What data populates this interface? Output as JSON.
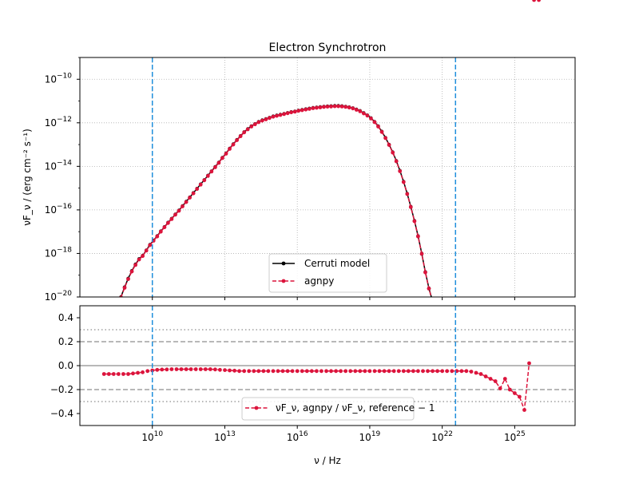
{
  "chart_data": [
    {
      "panel": "top",
      "type": "line",
      "title": "Electron Synchrotron",
      "xscale": "log",
      "yscale": "log",
      "xlim_log10": [
        7.0,
        27.5
      ],
      "ylim": [
        1e-20,
        1e-09
      ],
      "yticks": [
        {
          "value": 1e-10,
          "label": "10",
          "exp": "−10"
        },
        {
          "value": 1e-12,
          "label": "10",
          "exp": "−12"
        },
        {
          "value": 1e-14,
          "label": "10",
          "exp": "−14"
        },
        {
          "value": 1e-16,
          "label": "10",
          "exp": "−16"
        },
        {
          "value": 1e-18,
          "label": "10",
          "exp": "−18"
        },
        {
          "value": 1e-20,
          "label": "10",
          "exp": "−20"
        }
      ],
      "ylabel": "νF_ν / (erg cm⁻² s⁻¹)",
      "grid": true,
      "legend_position": "lower-center",
      "vlines_log10": [
        10.0,
        22.55
      ],
      "vline_color": "#1f8fdc",
      "series": [
        {
          "name": "Cerruti model",
          "color": "#000000",
          "style": "solid",
          "log10_x": [
            8.7,
            8.85,
            9.0,
            9.15,
            9.3,
            9.45,
            9.6,
            9.75,
            9.9,
            10.05,
            10.2,
            10.35,
            10.5,
            10.65,
            10.8,
            10.95,
            11.1,
            11.25,
            11.4,
            11.55,
            11.7,
            11.85,
            12.0,
            12.15,
            12.3,
            12.45,
            12.6,
            12.75,
            12.9,
            13.05,
            13.2,
            13.35,
            13.5,
            13.65,
            13.8,
            13.95,
            14.1,
            14.25,
            14.4,
            14.55,
            14.7,
            14.85,
            15.0,
            15.15,
            15.3,
            15.45,
            15.6,
            15.75,
            15.9,
            16.05,
            16.2,
            16.35,
            16.5,
            16.65,
            16.8,
            16.95,
            17.1,
            17.25,
            17.4,
            17.55,
            17.7,
            17.85,
            18.0,
            18.15,
            18.3,
            18.45,
            18.6,
            18.75,
            18.9,
            19.05,
            19.2,
            19.35,
            19.5,
            19.65,
            19.8,
            19.95,
            20.1,
            20.25,
            20.4,
            20.55,
            20.7,
            20.85,
            21.0,
            21.15,
            21.3,
            21.45,
            21.6,
            21.75,
            21.9,
            22.05,
            22.2
          ],
          "log10_y": [
            -20.0,
            -19.55,
            -19.15,
            -18.8,
            -18.5,
            -18.25,
            -18.1,
            -17.85,
            -17.6,
            -17.4,
            -17.2,
            -16.98,
            -16.78,
            -16.58,
            -16.4,
            -16.2,
            -16.02,
            -15.82,
            -15.62,
            -15.42,
            -15.22,
            -15.02,
            -14.82,
            -14.62,
            -14.42,
            -14.22,
            -14.02,
            -13.82,
            -13.6,
            -13.4,
            -13.18,
            -12.98,
            -12.78,
            -12.6,
            -12.42,
            -12.28,
            -12.15,
            -12.05,
            -11.95,
            -11.88,
            -11.82,
            -11.76,
            -11.7,
            -11.66,
            -11.62,
            -11.58,
            -11.54,
            -11.5,
            -11.47,
            -11.43,
            -11.4,
            -11.37,
            -11.34,
            -11.31,
            -11.29,
            -11.27,
            -11.25,
            -11.24,
            -11.23,
            -11.22,
            -11.22,
            -11.23,
            -11.25,
            -11.28,
            -11.32,
            -11.38,
            -11.45,
            -11.55,
            -11.65,
            -11.78,
            -11.95,
            -12.15,
            -12.4,
            -12.68,
            -13.0,
            -13.35,
            -13.75,
            -14.2,
            -14.7,
            -15.25,
            -15.85,
            -16.5,
            -17.2,
            -18.0,
            -18.85,
            -19.6,
            -20.2,
            -20.9,
            -21.6,
            -22.3,
            -23.0
          ]
        },
        {
          "name": "agnpy",
          "color": "#dc143c",
          "style": "dashed",
          "log10_x": [
            8.7,
            8.85,
            9.0,
            9.15,
            9.3,
            9.45,
            9.6,
            9.75,
            9.9,
            10.05,
            10.2,
            10.35,
            10.5,
            10.65,
            10.8,
            10.95,
            11.1,
            11.25,
            11.4,
            11.55,
            11.7,
            11.85,
            12.0,
            12.15,
            12.3,
            12.45,
            12.6,
            12.75,
            12.9,
            13.05,
            13.2,
            13.35,
            13.5,
            13.65,
            13.8,
            13.95,
            14.1,
            14.25,
            14.4,
            14.55,
            14.7,
            14.85,
            15.0,
            15.15,
            15.3,
            15.45,
            15.6,
            15.75,
            15.9,
            16.05,
            16.2,
            16.35,
            16.5,
            16.65,
            16.8,
            16.95,
            17.1,
            17.25,
            17.4,
            17.55,
            17.7,
            17.85,
            18.0,
            18.15,
            18.3,
            18.45,
            18.6,
            18.75,
            18.9,
            19.05,
            19.2,
            19.35,
            19.5,
            19.65,
            19.8,
            19.95,
            20.1,
            20.25,
            20.4,
            20.55,
            20.7,
            20.85,
            21.0,
            21.15,
            21.3,
            21.45,
            21.6,
            21.75,
            21.9,
            22.05,
            22.2
          ],
          "log10_y": [
            -20.03,
            -19.58,
            -19.18,
            -18.83,
            -18.53,
            -18.28,
            -18.12,
            -17.87,
            -17.62,
            -17.42,
            -17.22,
            -17.0,
            -16.8,
            -16.6,
            -16.42,
            -16.22,
            -16.04,
            -15.84,
            -15.64,
            -15.44,
            -15.24,
            -15.04,
            -14.84,
            -14.64,
            -14.44,
            -14.24,
            -14.04,
            -13.84,
            -13.62,
            -13.42,
            -13.2,
            -13.0,
            -12.8,
            -12.62,
            -12.44,
            -12.3,
            -12.17,
            -12.07,
            -11.97,
            -11.9,
            -11.84,
            -11.78,
            -11.72,
            -11.68,
            -11.64,
            -11.6,
            -11.56,
            -11.52,
            -11.49,
            -11.45,
            -11.42,
            -11.39,
            -11.36,
            -11.33,
            -11.31,
            -11.29,
            -11.27,
            -11.26,
            -11.25,
            -11.24,
            -11.24,
            -11.25,
            -11.27,
            -11.3,
            -11.34,
            -11.4,
            -11.47,
            -11.57,
            -11.67,
            -11.8,
            -11.97,
            -12.17,
            -12.42,
            -12.7,
            -13.02,
            -13.37,
            -13.77,
            -14.22,
            -14.72,
            -15.27,
            -15.87,
            -16.52,
            -17.22,
            -18.02,
            -18.87,
            -19.62,
            -20.22,
            -20.92,
            -21.62,
            -22.32,
            -23.02
          ]
        }
      ]
    },
    {
      "panel": "bottom",
      "type": "line",
      "xlabel": "ν / Hz",
      "xscale": "log",
      "xlim_log10": [
        7.0,
        27.5
      ],
      "xticks": [
        {
          "value": 10,
          "label": "10",
          "exp": "10"
        },
        {
          "value": 13,
          "label": "10",
          "exp": "13"
        },
        {
          "value": 16,
          "label": "10",
          "exp": "16"
        },
        {
          "value": 19,
          "label": "10",
          "exp": "19"
        },
        {
          "value": 22,
          "label": "10",
          "exp": "22"
        },
        {
          "value": 25,
          "label": "10",
          "exp": "25"
        }
      ],
      "ylim": [
        -0.5,
        0.5
      ],
      "yticks": [
        0.4,
        0.2,
        0.0,
        -0.2,
        -0.4
      ],
      "ytick_labels": [
        "0.4",
        "0.2",
        "0.0",
        "−0.2",
        "−0.4"
      ],
      "hlines": [
        {
          "y": 0.0,
          "style": "solid"
        },
        {
          "y": 0.2,
          "style": "dashed"
        },
        {
          "y": -0.2,
          "style": "dashed"
        },
        {
          "y": 0.3,
          "style": "dotted"
        },
        {
          "y": -0.3,
          "style": "dotted"
        }
      ],
      "vlines_log10": [
        10.0,
        22.55
      ],
      "vline_color": "#1f8fdc",
      "legend_position": "lower-center",
      "series": [
        {
          "name": "νF_ν, agnpy / νF_ν, reference − 1",
          "color": "#dc143c",
          "style": "dashed",
          "log10_x": [
            8.0,
            8.2,
            8.4,
            8.6,
            8.8,
            9.0,
            9.2,
            9.4,
            9.6,
            9.8,
            10.0,
            10.2,
            10.4,
            10.6,
            10.8,
            11.0,
            11.2,
            11.4,
            11.6,
            11.8,
            12.0,
            12.2,
            12.4,
            12.6,
            12.8,
            13.0,
            13.2,
            13.4,
            13.6,
            13.8,
            14.0,
            14.2,
            14.4,
            14.6,
            14.8,
            15.0,
            15.2,
            15.4,
            15.6,
            15.8,
            16.0,
            16.2,
            16.4,
            16.6,
            16.8,
            17.0,
            17.2,
            17.4,
            17.6,
            17.8,
            18.0,
            18.2,
            18.4,
            18.6,
            18.8,
            19.0,
            19.2,
            19.4,
            19.6,
            19.8,
            20.0,
            20.2,
            20.4,
            20.6,
            20.8,
            21.0,
            21.2,
            21.4,
            21.6,
            21.8,
            22.0,
            22.2,
            22.4,
            22.6,
            22.8,
            23.0,
            23.2,
            23.4,
            23.6,
            23.8,
            24.0,
            24.2,
            24.4,
            24.6,
            24.8,
            25.0,
            25.2,
            25.4,
            25.6,
            25.8,
            26.0
          ],
          "values": [
            -0.07,
            -0.07,
            -0.07,
            -0.07,
            -0.07,
            -0.07,
            -0.065,
            -0.06,
            -0.055,
            -0.045,
            -0.04,
            -0.035,
            -0.033,
            -0.032,
            -0.03,
            -0.03,
            -0.03,
            -0.03,
            -0.03,
            -0.03,
            -0.03,
            -0.03,
            -0.03,
            -0.032,
            -0.035,
            -0.037,
            -0.04,
            -0.042,
            -0.045,
            -0.045,
            -0.045,
            -0.045,
            -0.045,
            -0.045,
            -0.045,
            -0.045,
            -0.045,
            -0.045,
            -0.045,
            -0.045,
            -0.045,
            -0.045,
            -0.045,
            -0.045,
            -0.045,
            -0.045,
            -0.045,
            -0.045,
            -0.045,
            -0.045,
            -0.045,
            -0.045,
            -0.045,
            -0.045,
            -0.045,
            -0.045,
            -0.045,
            -0.045,
            -0.045,
            -0.045,
            -0.045,
            -0.045,
            -0.045,
            -0.045,
            -0.045,
            -0.045,
            -0.045,
            -0.045,
            -0.045,
            -0.045,
            -0.045,
            -0.045,
            -0.045,
            -0.045,
            -0.045,
            -0.045,
            -0.05,
            -0.06,
            -0.07,
            -0.09,
            -0.11,
            -0.13,
            -0.19,
            -0.11,
            -0.2,
            -0.23,
            -0.26,
            -0.37,
            0.02
          ]
        }
      ]
    }
  ],
  "legend_top": {
    "entries": [
      "Cerruti model",
      "agnpy"
    ]
  },
  "legend_bottom": {
    "entries": [
      "νF_ν, agnpy / νF_ν, reference − 1"
    ]
  }
}
